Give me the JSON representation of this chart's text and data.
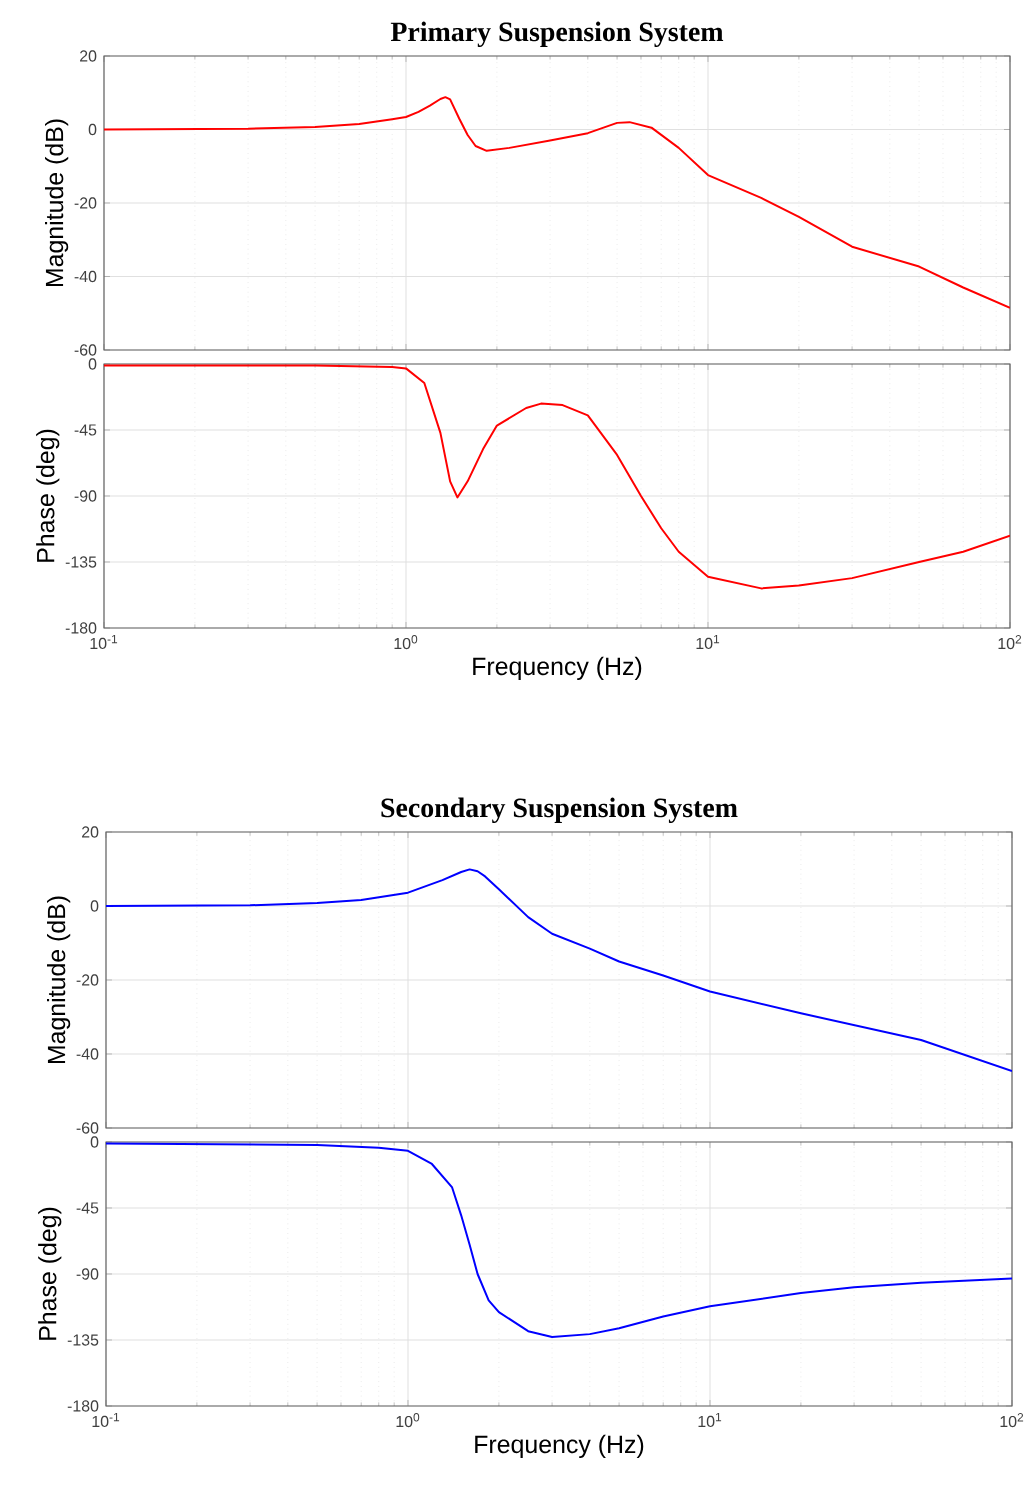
{
  "chart_data": [
    {
      "type": "line",
      "title": "Primary Suspension System",
      "ylabel": "Magnitude (dB)",
      "log": "x",
      "grid": true,
      "tick_labels": "y",
      "xlim": [
        0.1,
        100
      ],
      "ylim": [
        -60,
        20
      ],
      "yticks": [
        -60,
        -40,
        -20,
        0,
        20
      ],
      "xticks": [
        {
          "value": 0.1,
          "label": null
        },
        {
          "value": 1,
          "label": null
        },
        {
          "value": 10,
          "label": null
        },
        {
          "value": 100,
          "label": null
        }
      ],
      "x": [
        0.1,
        0.3,
        0.5,
        0.7,
        0.9,
        1.0,
        1.1,
        1.2,
        1.3,
        1.35,
        1.4,
        1.5,
        1.6,
        1.7,
        1.85,
        2.2,
        3,
        4,
        5,
        5.5,
        6.5,
        8,
        10,
        15,
        20,
        30,
        50,
        70,
        100
      ],
      "color": "#ff0000",
      "values": [
        0,
        0.2,
        0.7,
        1.5,
        2.8,
        3.4,
        4.8,
        6.5,
        8.3,
        8.8,
        8.2,
        3,
        -1.5,
        -4.5,
        -5.8,
        -5,
        -3,
        -1,
        1.8,
        2,
        0.5,
        -5,
        -12.4,
        -18.6,
        -23.8,
        -31.9,
        -37.3,
        -43,
        -48.5
      ]
    },
    {
      "type": "line",
      "xlabel": "Frequency  (Hz)",
      "ylabel": "Phase (deg)",
      "log": "x",
      "grid": true,
      "xlim": [
        0.1,
        100
      ],
      "ylim": [
        -180,
        0
      ],
      "yticks": [
        -180,
        -135,
        -90,
        -45,
        0
      ],
      "xticks": [
        {
          "value": 0.1,
          "label": "10$^{-1}$"
        },
        {
          "value": 1,
          "label": "10$^{0}$"
        },
        {
          "value": 10,
          "label": "10$^{1}$"
        },
        {
          "value": 100,
          "label": "10$^{2}$"
        }
      ],
      "x": [
        0.1,
        0.5,
        0.9,
        1.0,
        1.15,
        1.3,
        1.4,
        1.48,
        1.6,
        1.8,
        2.0,
        2.5,
        2.8,
        3.3,
        4,
        5,
        6,
        7,
        8,
        10,
        15,
        20,
        30,
        50,
        70,
        100
      ],
      "color": "#ff0000",
      "values": [
        -1,
        -1,
        -2,
        -3,
        -13,
        -47,
        -80,
        -91,
        -80,
        -58,
        -42,
        -30,
        -27,
        -28,
        -35,
        -62,
        -90,
        -112,
        -128,
        -145,
        -153,
        -151,
        -146,
        -135,
        -128,
        -117
      ]
    },
    {
      "type": "line",
      "title": "Secondary Suspension System",
      "ylabel": "Magnitude (dB)",
      "log": "x",
      "grid": true,
      "tick_labels": "y",
      "xlim": [
        0.1,
        100
      ],
      "ylim": [
        -60,
        20
      ],
      "yticks": [
        -60,
        -40,
        -20,
        0,
        20
      ],
      "xticks": [
        {
          "value": 0.1,
          "label": null
        },
        {
          "value": 1,
          "label": null
        },
        {
          "value": 10,
          "label": null
        },
        {
          "value": 100,
          "label": null
        }
      ],
      "x": [
        0.1,
        0.3,
        0.5,
        0.7,
        1.0,
        1.3,
        1.5,
        1.6,
        1.7,
        1.8,
        2,
        2.5,
        3,
        4,
        5,
        7,
        10,
        20,
        50,
        100
      ],
      "color": "#0000ff",
      "values": [
        0,
        0.2,
        0.8,
        1.6,
        3.6,
        7,
        9.2,
        9.9,
        9.4,
        8,
        4.5,
        -3,
        -7.5,
        -11.5,
        -15,
        -18.8,
        -23.1,
        -29,
        -36.2,
        -44.6
      ]
    },
    {
      "type": "line",
      "xlabel": "Frequency  (Hz)",
      "ylabel": "Phase (deg)",
      "log": "x",
      "grid": true,
      "xlim": [
        0.1,
        100
      ],
      "ylim": [
        -180,
        0
      ],
      "yticks": [
        -180,
        -135,
        -90,
        -45,
        0
      ],
      "xticks": [
        {
          "value": 0.1,
          "label": "10$^{-1}$"
        },
        {
          "value": 1,
          "label": "10$^{0}$"
        },
        {
          "value": 10,
          "label": "10$^{1}$"
        },
        {
          "value": 100,
          "label": "10$^{2}$"
        }
      ],
      "x": [
        0.1,
        0.5,
        0.8,
        1.0,
        1.2,
        1.4,
        1.5,
        1.6,
        1.7,
        1.85,
        2.0,
        2.5,
        3,
        4,
        5,
        7,
        10,
        20,
        30,
        50,
        100
      ],
      "color": "#0000ff",
      "values": [
        -1,
        -2,
        -4,
        -6,
        -15,
        -31,
        -50,
        -70,
        -90,
        -108,
        -116,
        -129,
        -133,
        -131,
        -127,
        -119,
        -112,
        -103,
        -99,
        -96,
        -93
      ]
    }
  ]
}
